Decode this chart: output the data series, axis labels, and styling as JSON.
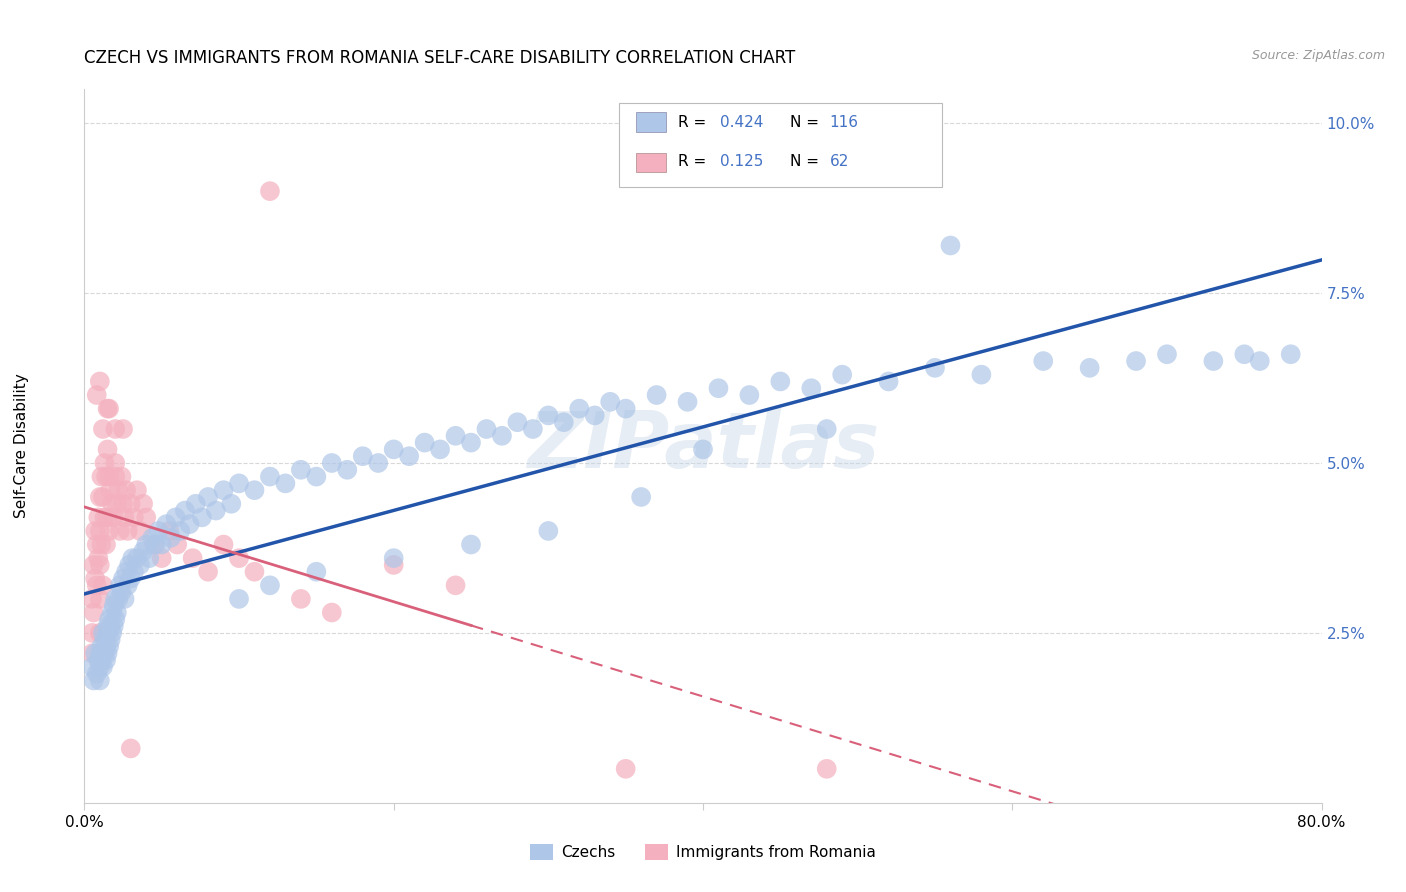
{
  "title": "CZECH VS IMMIGRANTS FROM ROMANIA SELF-CARE DISABILITY CORRELATION CHART",
  "source": "Source: ZipAtlas.com",
  "ylabel": "Self-Care Disability",
  "xlim": [
    0.0,
    0.8
  ],
  "ylim": [
    0.0,
    0.105
  ],
  "yticks": [
    0.0,
    0.025,
    0.05,
    0.075,
    0.1
  ],
  "ytick_labels": [
    "",
    "2.5%",
    "5.0%",
    "7.5%",
    "10.0%"
  ],
  "xticks": [
    0.0,
    0.2,
    0.4,
    0.6,
    0.8
  ],
  "xtick_labels": [
    "0.0%",
    "",
    "",
    "",
    "80.0%"
  ],
  "czech_R": 0.424,
  "czech_N": 116,
  "romania_R": 0.125,
  "romania_N": 62,
  "czech_color": "#aec6e8",
  "romania_color": "#f4b0be",
  "czech_line_color": "#2255aa",
  "romania_line_color": "#d9607a",
  "legend_text_color": "#4472c4",
  "background_color": "#ffffff",
  "grid_color": "#d8d8d8",
  "title_fontsize": 12,
  "axis_label_fontsize": 11,
  "tick_fontsize": 11,
  "czech_x": [
    0.005,
    0.006,
    0.007,
    0.008,
    0.009,
    0.01,
    0.01,
    0.01,
    0.011,
    0.011,
    0.012,
    0.012,
    0.013,
    0.013,
    0.014,
    0.014,
    0.015,
    0.015,
    0.015,
    0.016,
    0.016,
    0.017,
    0.017,
    0.018,
    0.018,
    0.019,
    0.019,
    0.02,
    0.02,
    0.021,
    0.022,
    0.023,
    0.024,
    0.025,
    0.026,
    0.027,
    0.028,
    0.029,
    0.03,
    0.031,
    0.032,
    0.034,
    0.036,
    0.038,
    0.04,
    0.042,
    0.044,
    0.046,
    0.048,
    0.05,
    0.053,
    0.056,
    0.059,
    0.062,
    0.065,
    0.068,
    0.072,
    0.076,
    0.08,
    0.085,
    0.09,
    0.095,
    0.1,
    0.11,
    0.12,
    0.13,
    0.14,
    0.15,
    0.16,
    0.17,
    0.18,
    0.19,
    0.2,
    0.21,
    0.22,
    0.23,
    0.24,
    0.25,
    0.26,
    0.27,
    0.28,
    0.29,
    0.3,
    0.31,
    0.32,
    0.33,
    0.34,
    0.35,
    0.37,
    0.39,
    0.41,
    0.43,
    0.45,
    0.47,
    0.49,
    0.52,
    0.55,
    0.58,
    0.62,
    0.65,
    0.68,
    0.7,
    0.73,
    0.75,
    0.76,
    0.78,
    0.56,
    0.48,
    0.4,
    0.36,
    0.3,
    0.25,
    0.2,
    0.15,
    0.12,
    0.1
  ],
  "czech_y": [
    0.02,
    0.018,
    0.022,
    0.019,
    0.021,
    0.02,
    0.022,
    0.018,
    0.023,
    0.021,
    0.02,
    0.025,
    0.022,
    0.024,
    0.021,
    0.023,
    0.025,
    0.022,
    0.026,
    0.023,
    0.027,
    0.024,
    0.026,
    0.025,
    0.028,
    0.026,
    0.029,
    0.027,
    0.03,
    0.028,
    0.03,
    0.032,
    0.031,
    0.033,
    0.03,
    0.034,
    0.032,
    0.035,
    0.033,
    0.036,
    0.034,
    0.036,
    0.035,
    0.037,
    0.038,
    0.036,
    0.039,
    0.038,
    0.04,
    0.038,
    0.041,
    0.039,
    0.042,
    0.04,
    0.043,
    0.041,
    0.044,
    0.042,
    0.045,
    0.043,
    0.046,
    0.044,
    0.047,
    0.046,
    0.048,
    0.047,
    0.049,
    0.048,
    0.05,
    0.049,
    0.051,
    0.05,
    0.052,
    0.051,
    0.053,
    0.052,
    0.054,
    0.053,
    0.055,
    0.054,
    0.056,
    0.055,
    0.057,
    0.056,
    0.058,
    0.057,
    0.059,
    0.058,
    0.06,
    0.059,
    0.061,
    0.06,
    0.062,
    0.061,
    0.063,
    0.062,
    0.064,
    0.063,
    0.065,
    0.064,
    0.065,
    0.066,
    0.065,
    0.066,
    0.065,
    0.066,
    0.082,
    0.055,
    0.052,
    0.045,
    0.04,
    0.038,
    0.036,
    0.034,
    0.032,
    0.03
  ],
  "romania_x": [
    0.005,
    0.005,
    0.005,
    0.006,
    0.006,
    0.007,
    0.007,
    0.008,
    0.008,
    0.009,
    0.009,
    0.01,
    0.01,
    0.01,
    0.01,
    0.01,
    0.011,
    0.011,
    0.012,
    0.012,
    0.013,
    0.013,
    0.014,
    0.014,
    0.015,
    0.015,
    0.016,
    0.016,
    0.017,
    0.018,
    0.019,
    0.02,
    0.021,
    0.022,
    0.023,
    0.024,
    0.025,
    0.026,
    0.027,
    0.028,
    0.03,
    0.032,
    0.034,
    0.036,
    0.038,
    0.04,
    0.045,
    0.05,
    0.055,
    0.06,
    0.07,
    0.08,
    0.09,
    0.1,
    0.11,
    0.12,
    0.14,
    0.16,
    0.2,
    0.24,
    0.35,
    0.48
  ],
  "romania_y": [
    0.03,
    0.025,
    0.022,
    0.035,
    0.028,
    0.04,
    0.033,
    0.038,
    0.032,
    0.042,
    0.036,
    0.045,
    0.04,
    0.035,
    0.03,
    0.025,
    0.048,
    0.038,
    0.045,
    0.032,
    0.05,
    0.042,
    0.048,
    0.038,
    0.052,
    0.042,
    0.048,
    0.04,
    0.046,
    0.044,
    0.042,
    0.048,
    0.044,
    0.046,
    0.04,
    0.048,
    0.044,
    0.042,
    0.046,
    0.04,
    0.044,
    0.042,
    0.046,
    0.04,
    0.044,
    0.042,
    0.038,
    0.036,
    0.04,
    0.038,
    0.036,
    0.034,
    0.038,
    0.036,
    0.034,
    0.09,
    0.03,
    0.028,
    0.035,
    0.032,
    0.005,
    0.005
  ],
  "romania_extra_x": [
    0.01,
    0.015,
    0.02,
    0.008,
    0.012,
    0.016,
    0.02,
    0.025,
    0.03
  ],
  "romania_extra_y": [
    0.062,
    0.058,
    0.055,
    0.06,
    0.055,
    0.058,
    0.05,
    0.055,
    0.008
  ]
}
